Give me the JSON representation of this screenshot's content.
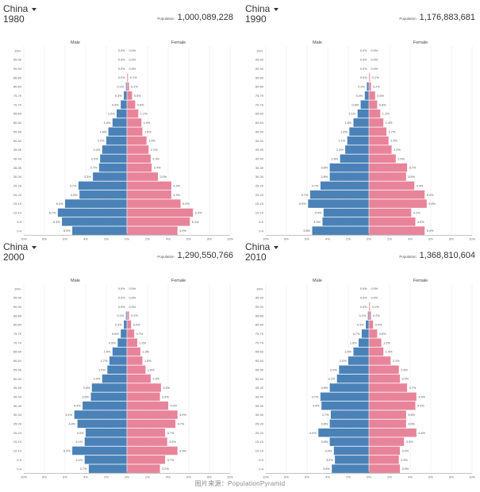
{
  "source_note": "图片来源：PopulationPyramid",
  "colors": {
    "male": "#4a82b8",
    "female": "#e8849a",
    "grid": "#e6e6e6",
    "axis": "#888888"
  },
  "age_groups": [
    "100+",
    "95-99",
    "90-94",
    "85-89",
    "80-84",
    "75-79",
    "70-74",
    "65-69",
    "60-64",
    "55-59",
    "50-54",
    "45-49",
    "40-44",
    "35-39",
    "30-34",
    "25-29",
    "20-24",
    "15-19",
    "10-14",
    "5-9",
    "0-4"
  ],
  "x_ticks": [
    "10%",
    "8%",
    "6%",
    "4%",
    "2%",
    "0%",
    "2%",
    "4%",
    "6%",
    "8%",
    "10%"
  ],
  "chart_data": [
    {
      "type": "bar",
      "country": "China",
      "year": "1980",
      "population_label": "Population",
      "population": "1,000,089,228",
      "left_label": "Male",
      "right_label": "Female",
      "xlim": [
        -10,
        10
      ],
      "male": [
        0.0,
        0.0,
        0.0,
        0.0,
        0.1,
        0.3,
        0.6,
        1.0,
        1.4,
        1.8,
        2.0,
        2.4,
        2.6,
        2.7,
        3.3,
        4.7,
        4.6,
        6.0,
        6.7,
        6.3,
        5.3
      ],
      "female": [
        0.0,
        0.0,
        0.0,
        0.1,
        0.2,
        0.5,
        0.8,
        1.1,
        1.4,
        1.5,
        1.9,
        2.1,
        2.3,
        2.4,
        3.0,
        4.3,
        4.3,
        5.2,
        6.4,
        6.1,
        4.9
      ]
    },
    {
      "type": "bar",
      "country": "China",
      "year": "1990",
      "population_label": "Population",
      "population": "1,176,883,681",
      "left_label": "Male",
      "right_label": "Female",
      "xlim": [
        -10,
        10
      ],
      "male": [
        0.0,
        0.0,
        0.0,
        0.0,
        0.2,
        0.4,
        0.8,
        1.1,
        1.5,
        1.9,
        2.1,
        2.3,
        2.8,
        3.8,
        3.8,
        4.7,
        5.7,
        5.9,
        4.4,
        4.5,
        5.5
      ],
      "female": [
        0.0,
        0.0,
        0.0,
        0.1,
        0.2,
        0.6,
        0.8,
        1.1,
        1.4,
        1.7,
        1.9,
        2.2,
        2.6,
        3.7,
        3.6,
        4.4,
        5.4,
        5.6,
        4.1,
        4.5,
        5.4
      ]
    },
    {
      "type": "bar",
      "country": "China",
      "year": "2000",
      "population_label": "Population",
      "population": "1,290,550,766",
      "left_label": "Male",
      "right_label": "Female",
      "xlim": [
        -10,
        10
      ],
      "male": [
        0.0,
        0.0,
        0.0,
        0.1,
        0.3,
        0.6,
        0.9,
        1.4,
        1.7,
        1.9,
        2.4,
        3.4,
        3.5,
        4.3,
        5.1,
        4.8,
        4.0,
        4.1,
        5.3,
        4.1,
        3.7
      ],
      "female": [
        0.0,
        0.0,
        0.0,
        0.2,
        0.4,
        0.7,
        1.0,
        1.3,
        1.5,
        1.8,
        2.3,
        3.3,
        3.2,
        4.0,
        4.9,
        4.7,
        3.7,
        3.9,
        4.9,
        3.7,
        3.2
      ]
    },
    {
      "type": "bar",
      "country": "China",
      "year": "2010",
      "population_label": "Population",
      "population": "1,368,810,604",
      "left_label": "Male",
      "right_label": "Female",
      "xlim": [
        -10,
        10
      ],
      "male": [
        0.0,
        0.0,
        0.0,
        0.1,
        0.3,
        0.7,
        1.0,
        1.5,
        2.0,
        2.9,
        3.1,
        3.8,
        4.7,
        4.6,
        3.7,
        3.8,
        4.9,
        3.8,
        3.4,
        3.3,
        3.6
      ],
      "female": [
        0.0,
        0.0,
        0.1,
        0.2,
        0.4,
        0.8,
        1.2,
        1.4,
        2.1,
        2.9,
        3.0,
        3.7,
        4.6,
        4.5,
        3.6,
        3.6,
        4.6,
        3.4,
        3.0,
        2.9,
        3.0
      ]
    }
  ]
}
